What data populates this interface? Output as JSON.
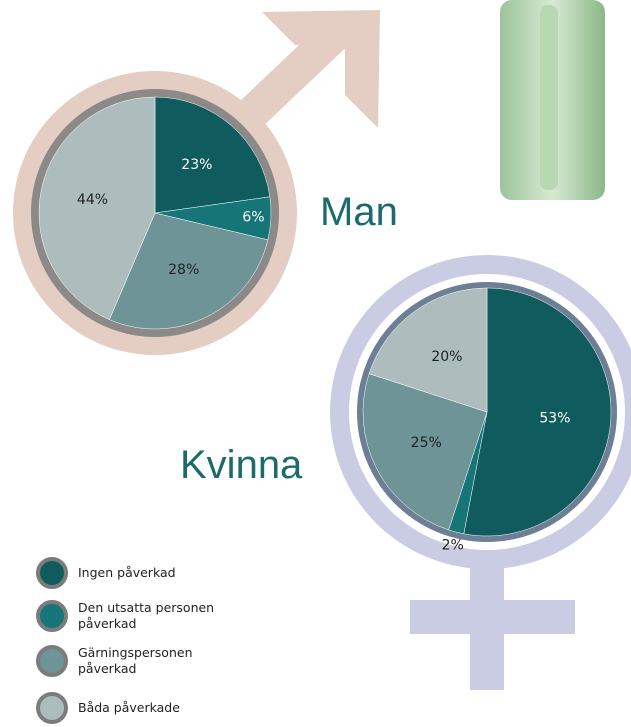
{
  "chart_data": [
    {
      "type": "pie",
      "title": "Man",
      "categories": [
        "Ingen påverkad",
        "Den utsatta personen påverkad",
        "Gärningspersonen påverkad",
        "Båda påverkade"
      ],
      "colors": [
        "#0f5b5d",
        "#167577",
        "#6e9497",
        "#adbdbe"
      ],
      "values": [
        23,
        6,
        28,
        44
      ],
      "value_labels": [
        "23%",
        "6%",
        "28%",
        "44%"
      ]
    },
    {
      "type": "pie",
      "title": "Kvinna",
      "values": [
        53,
        2,
        25,
        20
      ],
      "value_labels": [
        "53%",
        "2%",
        "25%",
        "20%"
      ]
    }
  ]
}
